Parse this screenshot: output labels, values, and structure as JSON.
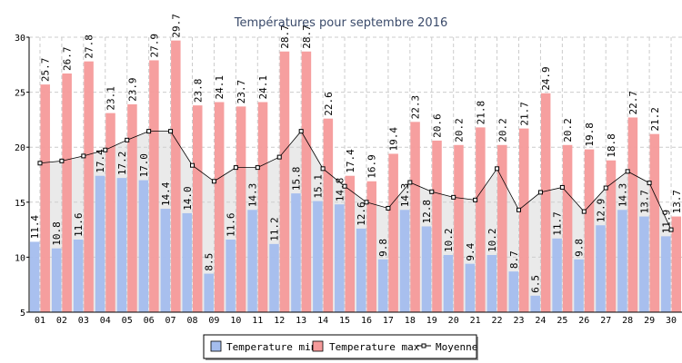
{
  "chart_data": {
    "type": "bar",
    "title": "Températures pour septembre 2016",
    "categories": [
      "01",
      "02",
      "03",
      "04",
      "05",
      "06",
      "07",
      "08",
      "09",
      "10",
      "11",
      "12",
      "13",
      "14",
      "15",
      "16",
      "17",
      "18",
      "19",
      "20",
      "21",
      "22",
      "23",
      "24",
      "25",
      "26",
      "27",
      "28",
      "29",
      "30"
    ],
    "series": [
      {
        "name": "Temperature min",
        "color": "#a4bdee",
        "values": [
          11.4,
          10.8,
          11.6,
          17.4,
          17.2,
          17.0,
          14.4,
          14.0,
          8.5,
          11.6,
          14.3,
          11.2,
          15.8,
          15.1,
          14.8,
          12.6,
          9.8,
          14.3,
          12.8,
          10.2,
          9.4,
          10.2,
          8.7,
          6.5,
          11.7,
          9.8,
          12.9,
          14.3,
          13.7,
          11.9
        ]
      },
      {
        "name": "Temperature max",
        "color": "#f59a9a",
        "values": [
          25.7,
          26.7,
          27.8,
          23.1,
          23.9,
          27.9,
          29.7,
          23.8,
          24.1,
          23.7,
          24.1,
          28.7,
          28.7,
          22.6,
          17.4,
          16.9,
          19.4,
          22.3,
          20.6,
          20.2,
          21.8,
          20.2,
          21.7,
          24.9,
          20.2,
          19.8,
          18.8,
          22.7,
          21.2,
          13.7
        ]
      },
      {
        "name": "Moyenne",
        "type": "line",
        "color": "#000000",
        "values": [
          18.55,
          18.75,
          19.2,
          19.75,
          20.65,
          21.45,
          21.45,
          18.35,
          16.9,
          18.15,
          18.15,
          19.1,
          21.45,
          18.05,
          16.45,
          15.0,
          14.45,
          16.8,
          15.95,
          15.45,
          15.2,
          18.05,
          14.3,
          15.9,
          16.35,
          14.15,
          16.3,
          17.8,
          16.75,
          12.5
        ]
      }
    ],
    "ylim": [
      5,
      30
    ],
    "yticks": [
      5,
      10,
      15,
      20,
      25,
      30
    ],
    "grid": true,
    "legend_position": "bottom"
  }
}
